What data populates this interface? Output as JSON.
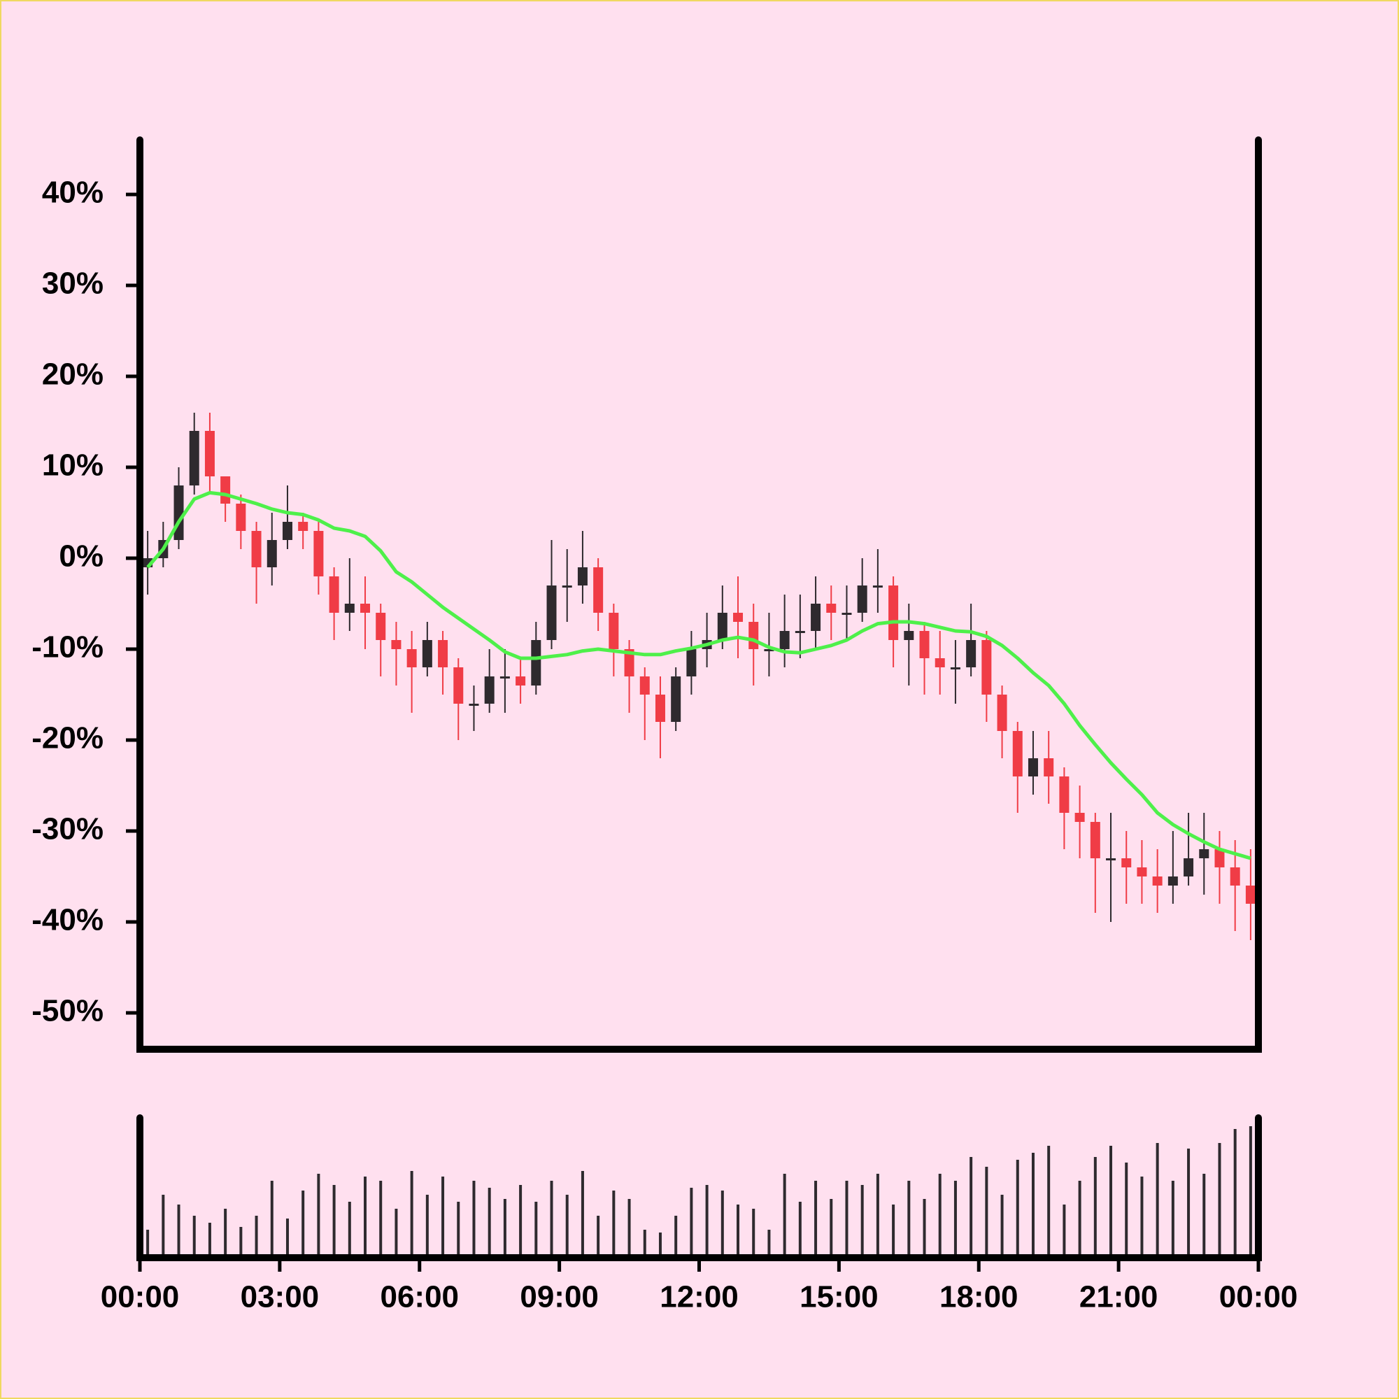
{
  "chart_data": {
    "type": "candlestick",
    "x": [
      10,
      30,
      50,
      70,
      90,
      110,
      130,
      150,
      170,
      190,
      210,
      230,
      250,
      270,
      290,
      310,
      330,
      350,
      370,
      390,
      410,
      430,
      450,
      470,
      490,
      510,
      530,
      550,
      570,
      590,
      610,
      630,
      650,
      670,
      690,
      710,
      730,
      750,
      770,
      790,
      810,
      830,
      850,
      870,
      890,
      910,
      930,
      950,
      970,
      990,
      1010,
      1030,
      1050,
      1070,
      1090,
      1110,
      1130,
      1150,
      1170,
      1190,
      1210,
      1230,
      1250,
      1270,
      1290,
      1310,
      1330,
      1350,
      1370,
      1390,
      1410,
      1430
    ],
    "open": [
      -1,
      0,
      2,
      8,
      14,
      9,
      6,
      3,
      -1,
      2,
      4,
      3,
      -2,
      -6,
      -5,
      -6,
      -9,
      -10,
      -12,
      -9,
      -12,
      -16,
      -16,
      -13,
      -13,
      -14,
      -9,
      -3,
      -3,
      -1,
      -6,
      -10,
      -13,
      -15,
      -18,
      -13,
      -10,
      -9,
      -6,
      -7,
      -10,
      -10,
      -8,
      -8,
      -5,
      -6,
      -6,
      -3,
      -3,
      -9,
      -8,
      -11,
      -12,
      -12,
      -9,
      -15,
      -19,
      -24,
      -22,
      -24,
      -28,
      -29,
      -33,
      -33,
      -34,
      -35,
      -36,
      -35,
      -33,
      -32,
      -34,
      -36
    ],
    "high": [
      3,
      4,
      10,
      16,
      16,
      9,
      7,
      4,
      5,
      8,
      5,
      4,
      -1,
      0,
      -2,
      -5,
      -7,
      -8,
      -7,
      -8,
      -11,
      -14,
      -10,
      -10,
      -11,
      -7,
      2,
      1,
      3,
      0,
      -5,
      -9,
      -12,
      -13,
      -12,
      -8,
      -6,
      -3,
      -2,
      -5,
      -6,
      -4,
      -4,
      -2,
      -3,
      -3,
      0,
      1,
      -2,
      -5,
      -7,
      -8,
      -9,
      -5,
      -8,
      -14,
      -18,
      -19,
      -19,
      -23,
      -25,
      -28,
      -28,
      -30,
      -31,
      -32,
      -30,
      -28,
      -28,
      -30,
      -31,
      -32
    ],
    "low": [
      -4,
      -1,
      1,
      7,
      7,
      4,
      1,
      -5,
      -3,
      1,
      1,
      -4,
      -9,
      -8,
      -10,
      -13,
      -14,
      -17,
      -13,
      -15,
      -20,
      -19,
      -17,
      -17,
      -16,
      -15,
      -10,
      -7,
      -5,
      -8,
      -13,
      -17,
      -20,
      -22,
      -19,
      -15,
      -12,
      -10,
      -11,
      -14,
      -13,
      -12,
      -11,
      -10,
      -9,
      -9,
      -7,
      -6,
      -12,
      -14,
      -15,
      -15,
      -16,
      -13,
      -18,
      -22,
      -28,
      -26,
      -27,
      -32,
      -33,
      -39,
      -40,
      -38,
      -38,
      -39,
      -38,
      -36,
      -37,
      -38,
      -41,
      -42
    ],
    "close": [
      0,
      2,
      8,
      14,
      9,
      6,
      3,
      -1,
      2,
      4,
      3,
      -2,
      -6,
      -5,
      -6,
      -9,
      -10,
      -12,
      -9,
      -12,
      -16,
      -16,
      -13,
      -13,
      -14,
      -9,
      -3,
      -3,
      -1,
      -6,
      -10,
      -13,
      -15,
      -18,
      -13,
      -10,
      -9,
      -6,
      -7,
      -10,
      -10,
      -8,
      -8,
      -5,
      -6,
      -6,
      -3,
      -3,
      -9,
      -8,
      -11,
      -12,
      -12,
      -9,
      -15,
      -19,
      -24,
      -22,
      -24,
      -28,
      -29,
      -33,
      -33,
      -34,
      -35,
      -36,
      -35,
      -33,
      -32,
      -34,
      -36,
      -38
    ],
    "volume": [
      20,
      45,
      38,
      30,
      25,
      35,
      22,
      30,
      55,
      28,
      48,
      60,
      52,
      40,
      58,
      55,
      35,
      62,
      45,
      58,
      40,
      55,
      50,
      42,
      52,
      40,
      55,
      45,
      62,
      30,
      48,
      42,
      20,
      18,
      30,
      50,
      52,
      48,
      38,
      35,
      20,
      60,
      40,
      55,
      42,
      55,
      52,
      60,
      38,
      55,
      42,
      60,
      55,
      72,
      65,
      45,
      70,
      75,
      80,
      38,
      55,
      72,
      80,
      68,
      58,
      82,
      55,
      78,
      60,
      82,
      92,
      94
    ],
    "ma": {
      "color": "#4ef04a",
      "values": [
        -1,
        1,
        4,
        6.5,
        7.2,
        7,
        6.5,
        6,
        5.4,
        5,
        4.8,
        4.2,
        3.3,
        3,
        2.4,
        0.8,
        -1.5,
        -2.6,
        -4,
        -5.4,
        -6.6,
        -7.8,
        -9,
        -10.3,
        -11,
        -11,
        -10.8,
        -10.6,
        -10.2,
        -10,
        -10.2,
        -10.4,
        -10.6,
        -10.6,
        -10.2,
        -9.9,
        -9.5,
        -9,
        -8.7,
        -9,
        -9.8,
        -10.3,
        -10.4,
        -10,
        -9.6,
        -9,
        -8,
        -7.2,
        -7,
        -7,
        -7.2,
        -7.6,
        -8,
        -8.1,
        -8.6,
        -9.6,
        -11,
        -12.6,
        -14,
        -16,
        -18.4,
        -20.5,
        -22.5,
        -24.3,
        -26,
        -28,
        -29.3,
        -30.3,
        -31.2,
        -32,
        -32.5,
        -33
      ]
    },
    "up_color": "#2e2a2e",
    "down_color": "#f03c46",
    "volume_color": "#2e2a2e",
    "ylim": [
      -54,
      46
    ],
    "yticks": [
      {
        "value": -50,
        "label": "-50%"
      },
      {
        "value": -40,
        "label": "-40%"
      },
      {
        "value": -30,
        "label": "-30%"
      },
      {
        "value": -20,
        "label": "-20%"
      },
      {
        "value": -10,
        "label": "-10%"
      },
      {
        "value": 0,
        "label": "0%"
      },
      {
        "value": 10,
        "label": "10%"
      },
      {
        "value": 20,
        "label": "20%"
      },
      {
        "value": 30,
        "label": "30%"
      },
      {
        "value": 40,
        "label": "40%"
      }
    ],
    "volume_ylim": [
      0,
      100
    ],
    "xlim": [
      0,
      1440
    ],
    "xticks": [
      {
        "value": 0,
        "label": "00:00"
      },
      {
        "value": 180,
        "label": "03:00"
      },
      {
        "value": 360,
        "label": "06:00"
      },
      {
        "value": 540,
        "label": "09:00"
      },
      {
        "value": 720,
        "label": "12:00"
      },
      {
        "value": 900,
        "label": "15:00"
      },
      {
        "value": 1080,
        "label": "18:00"
      },
      {
        "value": 1260,
        "label": "21:00"
      },
      {
        "value": 1440,
        "label": "00:00"
      }
    ]
  }
}
